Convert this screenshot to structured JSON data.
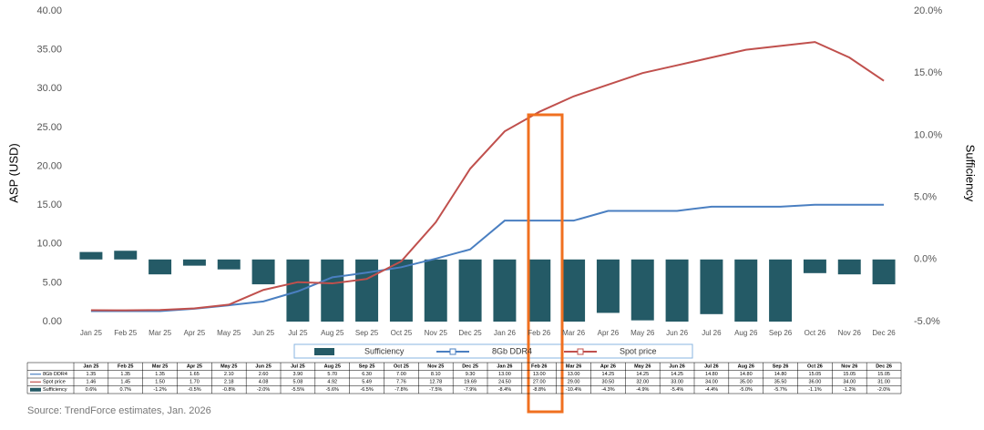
{
  "chart_data": {
    "type": "bar-line",
    "y_label": "ASP (USD)",
    "y2_label": "Sufficiency",
    "source": "Source: TrendForce estimates, Jan. 2026",
    "categories": [
      "Jan 25",
      "Feb 25",
      "Mar 25",
      "Apr 25",
      "May 25",
      "Jun 25",
      "Jul 25",
      "Aug 25",
      "Sep 25",
      "Oct 25",
      "Nov 25",
      "Dec 25",
      "Jan 26",
      "Feb 26",
      "Mar 26",
      "Apr 26",
      "May 26",
      "Jun 26",
      "Jul 26",
      "Aug 26",
      "Sep 26",
      "Oct 26",
      "Nov 26",
      "Dec 26"
    ],
    "series": [
      {
        "name": "8Gb DDR4",
        "type": "line",
        "color": "#4a7fc1",
        "values": [
          1.35,
          1.35,
          1.35,
          1.65,
          2.1,
          2.6,
          3.9,
          5.7,
          6.3,
          7.0,
          8.1,
          9.3,
          13.0,
          13.0,
          13.0,
          14.25,
          14.25,
          14.25,
          14.8,
          14.8,
          14.8,
          15.05,
          15.05,
          15.05
        ],
        "value_labels": [
          "1.35",
          "1.35",
          "1.35",
          "1.65",
          "2.10",
          "2.60",
          "3.90",
          "5.70",
          "6.30",
          "7.00",
          "8.10",
          "9.30",
          "13.00",
          "13.00",
          "13.00",
          "14.25",
          "14.25",
          "14.25",
          "14.80",
          "14.80",
          "14.80",
          "15.05",
          "15.05",
          "15.05"
        ]
      },
      {
        "name": "Spot price",
        "type": "line",
        "color": "#c0504d",
        "values": [
          1.46,
          1.45,
          1.5,
          1.7,
          2.18,
          4.08,
          5.08,
          4.92,
          5.49,
          7.76,
          12.78,
          19.69,
          24.5,
          27.0,
          29.0,
          30.5,
          32.0,
          33.0,
          34.0,
          35.0,
          35.5,
          36.0,
          34.0,
          31.0
        ],
        "value_labels": [
          "1.46",
          "1.45",
          "1.50",
          "1.70",
          "2.18",
          "4.08",
          "5.08",
          "4.92",
          "5.49",
          "7.76",
          "12.78",
          "19.69",
          "24.50",
          "27.00",
          "29.00",
          "30.50",
          "32.00",
          "33.00",
          "34.00",
          "35.00",
          "35.50",
          "36.00",
          "34.00",
          "31.00"
        ]
      },
      {
        "name": "Sufficiency",
        "type": "bar",
        "axis": "y2",
        "color": "#245a66",
        "values": [
          0.6,
          0.7,
          -1.2,
          -0.5,
          -0.8,
          -2.0,
          -5.5,
          -5.6,
          -6.5,
          -7.8,
          -7.5,
          -7.9,
          -8.4,
          -8.8,
          -10.4,
          -4.3,
          -4.9,
          -5.4,
          -4.4,
          -5.0,
          -5.7,
          -1.1,
          -1.2,
          -2.0
        ],
        "value_labels": [
          "0.6%",
          "0.7%",
          "-1.2%",
          "-0.5%",
          "-0.8%",
          "-2.0%",
          "-5.5%",
          "-5.6%",
          "-6.5%",
          "-7.8%",
          "-7.5%",
          "-7.9%",
          "-8.4%",
          "-8.8%",
          "-10.4%",
          "-4.3%",
          "-4.9%",
          "-5.4%",
          "-4.4%",
          "-5.0%",
          "-5.7%",
          "-1.1%",
          "-1.2%",
          "-2.0%"
        ]
      }
    ],
    "ylim": [
      0,
      40
    ],
    "yticks": [
      {
        "value": 0,
        "label": "0.00"
      },
      {
        "value": 5,
        "label": "5.00"
      },
      {
        "value": 10,
        "label": "10.00"
      },
      {
        "value": 15,
        "label": "15.00"
      },
      {
        "value": 20,
        "label": "20.00"
      },
      {
        "value": 25,
        "label": "25.00"
      },
      {
        "value": 30,
        "label": "30.00"
      },
      {
        "value": 35,
        "label": "35.00"
      },
      {
        "value": 40,
        "label": "40.00"
      }
    ],
    "y2lim": [
      -5,
      20
    ],
    "y2ticks": [
      {
        "value": -5,
        "label": "-5.0%"
      },
      {
        "value": 0,
        "label": "0.0%"
      },
      {
        "value": 5,
        "label": "5.0%"
      },
      {
        "value": 10,
        "label": "10.0%"
      },
      {
        "value": 15,
        "label": "15.0%"
      },
      {
        "value": 20,
        "label": "20.0%"
      }
    ],
    "grid": false
  }
}
